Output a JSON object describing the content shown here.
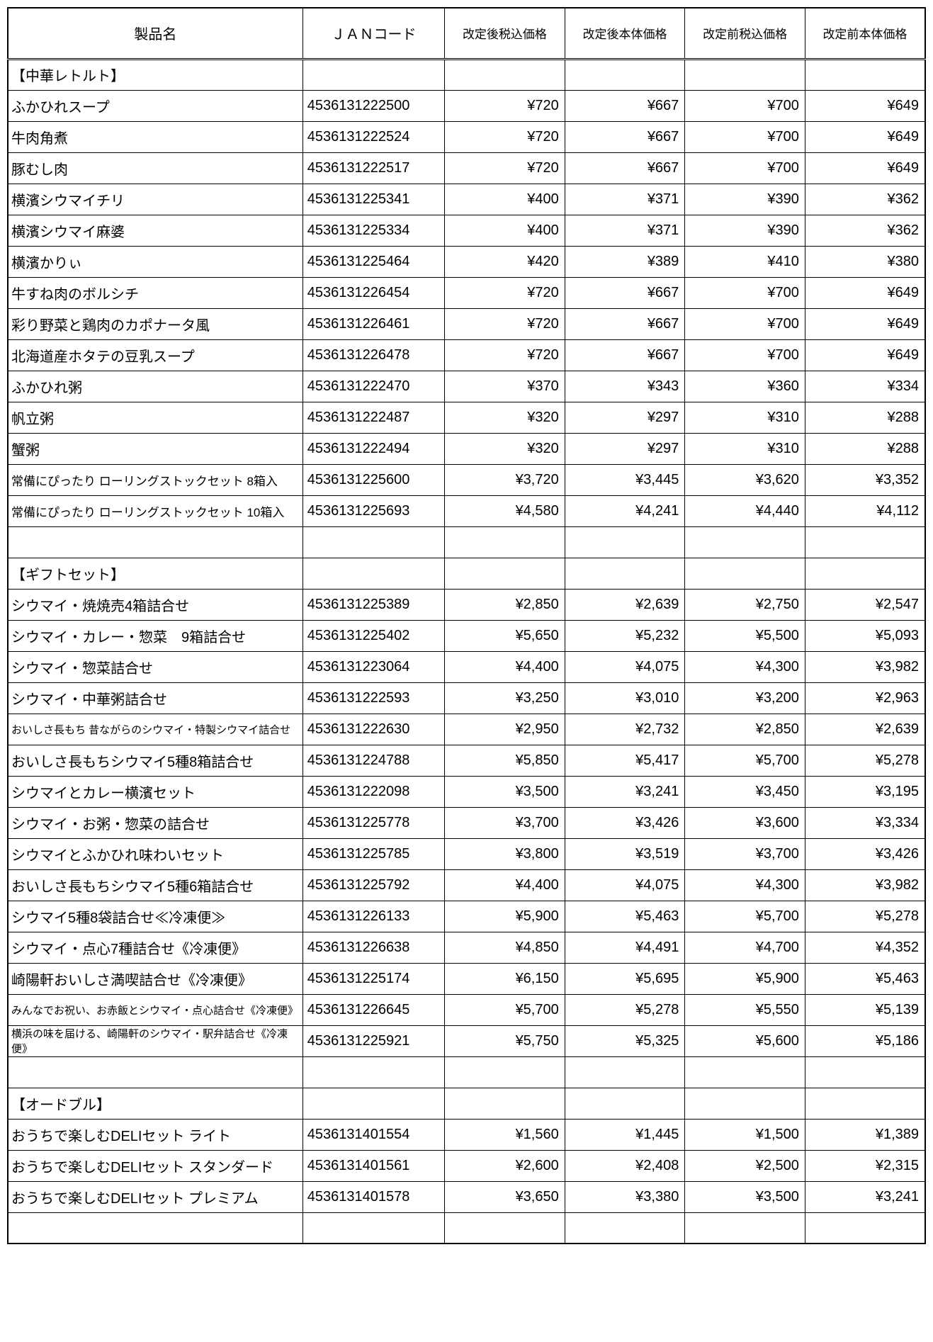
{
  "columns": [
    {
      "label": "製品名",
      "width": "27%"
    },
    {
      "label": "ＪＡＮコード",
      "width": "13%"
    },
    {
      "label": "改定後税込価格",
      "width": "11%"
    },
    {
      "label": "改定後本体価格",
      "width": "11%"
    },
    {
      "label": "改定前税込価格",
      "width": "11%"
    },
    {
      "label": "改定前本体価格",
      "width": "11%"
    }
  ],
  "header_fontsize": 20,
  "price_header_fontsize": 17,
  "body_fontsize": 20,
  "small_fontsize": 15,
  "medium_fontsize": 17,
  "background_color": "#ffffff",
  "border_color": "#000000",
  "text_color": "#000000",
  "rows": [
    {
      "type": "section",
      "name": "【中華レトルト】"
    },
    {
      "type": "data",
      "name": "ふかひれスープ",
      "jan": "4536131222500",
      "p1": "¥720",
      "p2": "¥667",
      "p3": "¥700",
      "p4": "¥649"
    },
    {
      "type": "data",
      "name": "牛肉角煮",
      "jan": "4536131222524",
      "p1": "¥720",
      "p2": "¥667",
      "p3": "¥700",
      "p4": "¥649"
    },
    {
      "type": "data",
      "name": "豚むし肉",
      "jan": "4536131222517",
      "p1": "¥720",
      "p2": "¥667",
      "p3": "¥700",
      "p4": "¥649"
    },
    {
      "type": "data",
      "name": "横濱シウマイチリ",
      "jan": "4536131225341",
      "p1": "¥400",
      "p2": "¥371",
      "p3": "¥390",
      "p4": "¥362"
    },
    {
      "type": "data",
      "name": "横濱シウマイ麻婆",
      "jan": "4536131225334",
      "p1": "¥400",
      "p2": "¥371",
      "p3": "¥390",
      "p4": "¥362"
    },
    {
      "type": "data",
      "name": "横濱かりぃ",
      "jan": "4536131225464",
      "p1": "¥420",
      "p2": "¥389",
      "p3": "¥410",
      "p4": "¥380"
    },
    {
      "type": "data",
      "name": "牛すね肉のボルシチ",
      "jan": "4536131226454",
      "p1": "¥720",
      "p2": "¥667",
      "p3": "¥700",
      "p4": "¥649"
    },
    {
      "type": "data",
      "name": "彩り野菜と鶏肉のカポナータ風",
      "jan": "4536131226461",
      "p1": "¥720",
      "p2": "¥667",
      "p3": "¥700",
      "p4": "¥649"
    },
    {
      "type": "data",
      "name": "北海道産ホタテの豆乳スープ",
      "jan": "4536131226478",
      "p1": "¥720",
      "p2": "¥667",
      "p3": "¥700",
      "p4": "¥649"
    },
    {
      "type": "data",
      "name": "ふかひれ粥",
      "jan": "4536131222470",
      "p1": "¥370",
      "p2": "¥343",
      "p3": "¥360",
      "p4": "¥334"
    },
    {
      "type": "data",
      "name": "帆立粥",
      "jan": "4536131222487",
      "p1": "¥320",
      "p2": "¥297",
      "p3": "¥310",
      "p4": "¥288"
    },
    {
      "type": "data",
      "name": "蟹粥",
      "jan": "4536131222494",
      "p1": "¥320",
      "p2": "¥297",
      "p3": "¥310",
      "p4": "¥288"
    },
    {
      "type": "data",
      "name": "常備にぴったり ローリングストックセット 8箱入",
      "jan": "4536131225600",
      "p1": "¥3,720",
      "p2": "¥3,445",
      "p3": "¥3,620",
      "p4": "¥3,352",
      "nameClass": "medium-text"
    },
    {
      "type": "data",
      "name": "常備にぴったり ローリングストックセット 10箱入",
      "jan": "4536131225693",
      "p1": "¥4,580",
      "p2": "¥4,241",
      "p3": "¥4,440",
      "p4": "¥4,112",
      "nameClass": "medium-text"
    },
    {
      "type": "empty"
    },
    {
      "type": "section",
      "name": "【ギフトセット】"
    },
    {
      "type": "data",
      "name": "シウマイ・焼焼売4箱詰合せ",
      "jan": "4536131225389",
      "p1": "¥2,850",
      "p2": "¥2,639",
      "p3": "¥2,750",
      "p4": "¥2,547"
    },
    {
      "type": "data",
      "name": "シウマイ・カレー・惣菜　9箱詰合せ",
      "jan": "4536131225402",
      "p1": "¥5,650",
      "p2": "¥5,232",
      "p3": "¥5,500",
      "p4": "¥5,093"
    },
    {
      "type": "data",
      "name": "シウマイ・惣菜詰合せ",
      "jan": "4536131223064",
      "p1": "¥4,400",
      "p2": "¥4,075",
      "p3": "¥4,300",
      "p4": "¥3,982"
    },
    {
      "type": "data",
      "name": "シウマイ・中華粥詰合せ",
      "jan": "4536131222593",
      "p1": "¥3,250",
      "p2": "¥3,010",
      "p3": "¥3,200",
      "p4": "¥2,963"
    },
    {
      "type": "data",
      "name": "おいしさ長もち 昔ながらのシウマイ・特製シウマイ詰合せ",
      "jan": "4536131222630",
      "p1": "¥2,950",
      "p2": "¥2,732",
      "p3": "¥2,850",
      "p4": "¥2,639",
      "nameClass": "small-text"
    },
    {
      "type": "data",
      "name": "おいしさ長もちシウマイ5種8箱詰合せ",
      "jan": "4536131224788",
      "p1": "¥5,850",
      "p2": "¥5,417",
      "p3": "¥5,700",
      "p4": "¥5,278"
    },
    {
      "type": "data",
      "name": "シウマイとカレー横濱セット",
      "jan": "4536131222098",
      "p1": "¥3,500",
      "p2": "¥3,241",
      "p3": "¥3,450",
      "p4": "¥3,195"
    },
    {
      "type": "data",
      "name": "シウマイ・お粥・惣菜の詰合せ",
      "jan": "4536131225778",
      "p1": "¥3,700",
      "p2": "¥3,426",
      "p3": "¥3,600",
      "p4": "¥3,334"
    },
    {
      "type": "data",
      "name": "シウマイとふかひれ味わいセット",
      "jan": "4536131225785",
      "p1": "¥3,800",
      "p2": "¥3,519",
      "p3": "¥3,700",
      "p4": "¥3,426"
    },
    {
      "type": "data",
      "name": "おいしさ長もちシウマイ5種6箱詰合せ",
      "jan": "4536131225792",
      "p1": "¥4,400",
      "p2": "¥4,075",
      "p3": "¥4,300",
      "p4": "¥3,982"
    },
    {
      "type": "data",
      "name": "シウマイ5種8袋詰合せ≪冷凍便≫",
      "jan": "4536131226133",
      "p1": "¥5,900",
      "p2": "¥5,463",
      "p3": "¥5,700",
      "p4": "¥5,278"
    },
    {
      "type": "data",
      "name": "シウマイ・点心7種詰合せ《冷凍便》",
      "jan": "4536131226638",
      "p1": "¥4,850",
      "p2": "¥4,491",
      "p3": "¥4,700",
      "p4": "¥4,352"
    },
    {
      "type": "data",
      "name": "崎陽軒おいしさ満喫詰合せ《冷凍便》",
      "jan": "4536131225174",
      "p1": "¥6,150",
      "p2": "¥5,695",
      "p3": "¥5,900",
      "p4": "¥5,463"
    },
    {
      "type": "data",
      "name": "みんなでお祝い、お赤飯とシウマイ・点心詰合せ《冷凍便》",
      "jan": "4536131226645",
      "p1": "¥5,700",
      "p2": "¥5,278",
      "p3": "¥5,550",
      "p4": "¥5,139",
      "nameClass": "small-text"
    },
    {
      "type": "data",
      "name": "横浜の味を届ける、崎陽軒のシウマイ・駅弁詰合せ《冷凍便》",
      "jan": "4536131225921",
      "p1": "¥5,750",
      "p2": "¥5,325",
      "p3": "¥5,600",
      "p4": "¥5,186",
      "nameClass": "small-text"
    },
    {
      "type": "empty"
    },
    {
      "type": "section",
      "name": "【オードブル】"
    },
    {
      "type": "data",
      "name": "おうちで楽しむDELIセット ライト",
      "jan": "4536131401554",
      "p1": "¥1,560",
      "p2": "¥1,445",
      "p3": "¥1,500",
      "p4": "¥1,389"
    },
    {
      "type": "data",
      "name": "おうちで楽しむDELIセット スタンダード",
      "jan": "4536131401561",
      "p1": "¥2,600",
      "p2": "¥2,408",
      "p3": "¥2,500",
      "p4": "¥2,315"
    },
    {
      "type": "data",
      "name": "おうちで楽しむDELIセット プレミアム",
      "jan": "4536131401578",
      "p1": "¥3,650",
      "p2": "¥3,380",
      "p3": "¥3,500",
      "p4": "¥3,241"
    },
    {
      "type": "empty"
    }
  ]
}
